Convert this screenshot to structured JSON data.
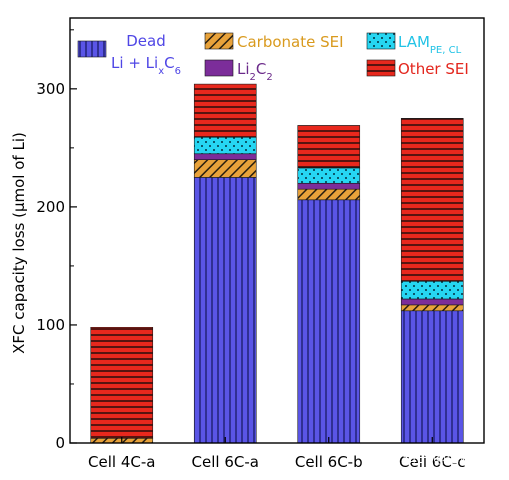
{
  "chart_data": {
    "type": "bar",
    "stacked": true,
    "categories": [
      "Cell 4C-a",
      "Cell 6C-a",
      "Cell 6C-b",
      "Cell 6C-c"
    ],
    "ylabel": "XFC capacity loss (μmol of Li)",
    "ylim": [
      0,
      360
    ],
    "yticks": [
      0,
      100,
      200,
      300
    ],
    "grid": false,
    "legend_position": "top",
    "series": [
      {
        "key": "dead",
        "name_line1": "Dead",
        "name_line2": "Li + Li",
        "name_sub": "x",
        "name_tail": "C",
        "name_tail_sub": "6",
        "color": "#5a55e6",
        "text_color": "#4f46e5",
        "pattern": "vertical-lines",
        "values": [
          0,
          225,
          206,
          112
        ]
      },
      {
        "key": "carbonate",
        "name": "Carbonate SEI",
        "color": "#e8a23a",
        "text_color": "#d99a1e",
        "pattern": "diagonal-hatch",
        "values": [
          4,
          15,
          9,
          5
        ]
      },
      {
        "key": "li2c2",
        "name_pre": "Li",
        "name_sub1": "2",
        "name_mid": "C",
        "name_sub2": "2",
        "color": "#7c2d9a",
        "text_color": "#6b2a8a",
        "pattern": "solid",
        "values": [
          0,
          5,
          5,
          5
        ]
      },
      {
        "key": "lam",
        "name": "LAM",
        "name_sub": "PE, CL",
        "color": "#26d6f2",
        "text_color": "#22c3e6",
        "pattern": "dots",
        "values": [
          0,
          14,
          13,
          15
        ]
      },
      {
        "key": "other",
        "name": "Other SEI",
        "color": "#e8281d",
        "text_color": "#e3261d",
        "pattern": "horizontal-lines",
        "values": [
          94,
          45,
          36,
          138
        ]
      }
    ]
  },
  "watermark": "知乎 @电源学人"
}
